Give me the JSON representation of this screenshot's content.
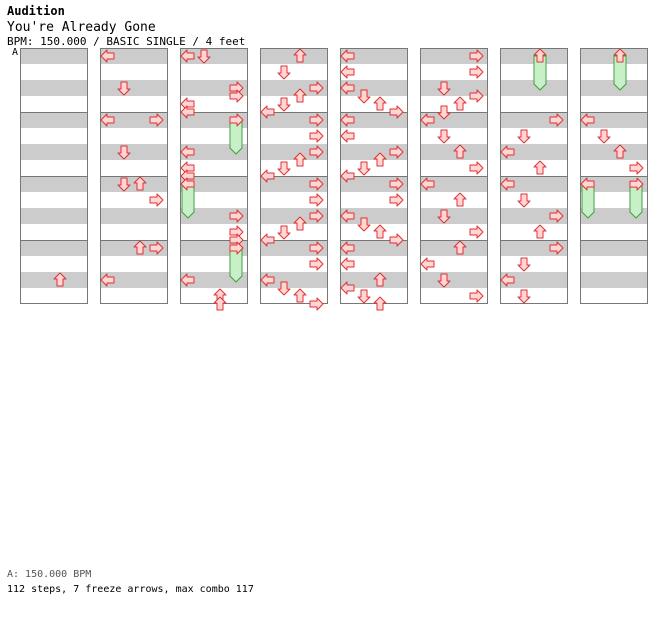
{
  "header": {
    "mode": "Audition",
    "title": "You're Already Gone",
    "meta": "BPM: 150.000 / BASIC SINGLE / 4 feet",
    "bpm_marker": "A"
  },
  "footer": {
    "bpm_legend": "A: 150.000 BPM",
    "stats": "112 steps, 7 freeze arrows, max combo 117"
  },
  "colors": {
    "stripe": "#cccccc",
    "arrow_fill": "#ffd6d6",
    "arrow_stroke": "#e03030",
    "freeze_fill": "#c8f0c8",
    "freeze_stroke": "#40a040"
  },
  "chart_data": {
    "type": "step-chart",
    "measures_per_column": 4,
    "rows_per_measure": 4,
    "lanes": [
      "left",
      "down",
      "up",
      "right"
    ],
    "columns": [
      {
        "arrows": [
          [
            14,
            "up"
          ]
        ],
        "freezes": []
      },
      {
        "arrows": [
          [
            0,
            "left"
          ],
          [
            2,
            "down"
          ],
          [
            4,
            "left"
          ],
          [
            4,
            "right"
          ],
          [
            6,
            "down"
          ],
          [
            8,
            "down"
          ],
          [
            8,
            "up"
          ],
          [
            9,
            "right"
          ],
          [
            12,
            "up"
          ],
          [
            12,
            "right"
          ],
          [
            14,
            "left"
          ]
        ],
        "freezes": []
      },
      {
        "arrows": [
          [
            0,
            "left"
          ],
          [
            0,
            "down"
          ],
          [
            2,
            "right"
          ],
          [
            2.5,
            "right"
          ],
          [
            3,
            "left"
          ],
          [
            3.5,
            "left"
          ],
          [
            4,
            "right"
          ],
          [
            6,
            "left"
          ],
          [
            7,
            "left"
          ],
          [
            7.5,
            "left"
          ],
          [
            8,
            "left"
          ],
          [
            10,
            "right"
          ],
          [
            11,
            "right"
          ],
          [
            11.5,
            "right"
          ],
          [
            12,
            "right"
          ],
          [
            14,
            "left"
          ],
          [
            15,
            "up"
          ],
          [
            15.5,
            "up"
          ]
        ],
        "freezes": [
          [
            4,
            6,
            "right"
          ],
          [
            8,
            10,
            "left"
          ],
          [
            12,
            14,
            "right"
          ]
        ]
      },
      {
        "arrows": [
          [
            0,
            "up"
          ],
          [
            1,
            "down"
          ],
          [
            2,
            "right"
          ],
          [
            2.5,
            "up"
          ],
          [
            3,
            "down"
          ],
          [
            3.5,
            "left"
          ],
          [
            4,
            "right"
          ],
          [
            5,
            "right"
          ],
          [
            6,
            "right"
          ],
          [
            6.5,
            "up"
          ],
          [
            7,
            "down"
          ],
          [
            7.5,
            "left"
          ],
          [
            8,
            "right"
          ],
          [
            9,
            "right"
          ],
          [
            10,
            "right"
          ],
          [
            10.5,
            "up"
          ],
          [
            11,
            "down"
          ],
          [
            11.5,
            "left"
          ],
          [
            12,
            "right"
          ],
          [
            13,
            "right"
          ],
          [
            14,
            "left"
          ],
          [
            14.5,
            "down"
          ],
          [
            15,
            "up"
          ],
          [
            15.5,
            "right"
          ]
        ],
        "freezes": []
      },
      {
        "arrows": [
          [
            0,
            "left"
          ],
          [
            1,
            "left"
          ],
          [
            2,
            "left"
          ],
          [
            2.5,
            "down"
          ],
          [
            3,
            "up"
          ],
          [
            3.5,
            "right"
          ],
          [
            4,
            "left"
          ],
          [
            5,
            "left"
          ],
          [
            6,
            "right"
          ],
          [
            6.5,
            "up"
          ],
          [
            7,
            "down"
          ],
          [
            7.5,
            "left"
          ],
          [
            8,
            "right"
          ],
          [
            9,
            "right"
          ],
          [
            10,
            "left"
          ],
          [
            10.5,
            "down"
          ],
          [
            11,
            "up"
          ],
          [
            11.5,
            "right"
          ],
          [
            12,
            "left"
          ],
          [
            13,
            "left"
          ],
          [
            14,
            "up"
          ],
          [
            14.5,
            "left"
          ],
          [
            15,
            "down"
          ],
          [
            15.5,
            "up"
          ]
        ],
        "freezes": []
      },
      {
        "arrows": [
          [
            0,
            "right"
          ],
          [
            1,
            "right"
          ],
          [
            2,
            "down"
          ],
          [
            2.5,
            "right"
          ],
          [
            3,
            "up"
          ],
          [
            3.5,
            "down"
          ],
          [
            4,
            "left"
          ],
          [
            5,
            "down"
          ],
          [
            6,
            "up"
          ],
          [
            7,
            "right"
          ],
          [
            8,
            "left"
          ],
          [
            9,
            "up"
          ],
          [
            10,
            "down"
          ],
          [
            11,
            "right"
          ],
          [
            12,
            "up"
          ],
          [
            13,
            "left"
          ],
          [
            14,
            "down"
          ],
          [
            15,
            "right"
          ]
        ],
        "freezes": []
      },
      {
        "arrows": [
          [
            0,
            "up"
          ],
          [
            4,
            "right"
          ],
          [
            5,
            "down"
          ],
          [
            6,
            "left"
          ],
          [
            7,
            "up"
          ],
          [
            8,
            "left"
          ],
          [
            9,
            "down"
          ],
          [
            10,
            "right"
          ],
          [
            11,
            "up"
          ],
          [
            12,
            "right"
          ],
          [
            13,
            "down"
          ],
          [
            14,
            "left"
          ],
          [
            15,
            "down"
          ]
        ],
        "freezes": [
          [
            0,
            2,
            "up"
          ]
        ]
      },
      {
        "arrows": [
          [
            0,
            "up"
          ],
          [
            4,
            "left"
          ],
          [
            5,
            "down"
          ],
          [
            6,
            "up"
          ],
          [
            7,
            "right"
          ],
          [
            8,
            "left"
          ],
          [
            8.01,
            "right"
          ]
        ],
        "freezes": [
          [
            0,
            2,
            "up"
          ],
          [
            8,
            10,
            "left"
          ],
          [
            8,
            10,
            "right"
          ]
        ]
      }
    ]
  }
}
